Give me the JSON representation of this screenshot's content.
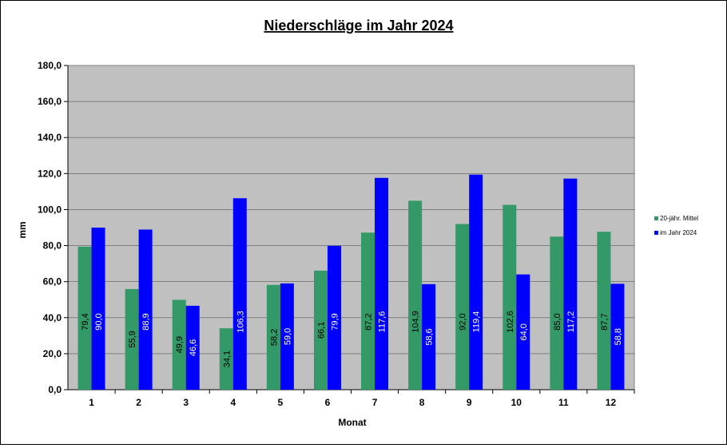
{
  "chart_data": {
    "type": "bar",
    "title": "Niederschläge im Jahr  2024",
    "xlabel": "Monat",
    "ylabel": "mm",
    "ylim": [
      0,
      180
    ],
    "yticks": [
      "0,0",
      "20,0",
      "40,0",
      "60,0",
      "80,0",
      "100,0",
      "120,0",
      "140,0",
      "160,0",
      "180,0"
    ],
    "categories": [
      "1",
      "2",
      "3",
      "4",
      "5",
      "6",
      "7",
      "8",
      "9",
      "10",
      "11",
      "12"
    ],
    "grid": true,
    "legend_position": "right",
    "plot_background": "#c0c0c0",
    "series": [
      {
        "name": "20-jähr. Mittel",
        "color": "#339966",
        "values": [
          79.4,
          55.9,
          49.9,
          34.1,
          58.2,
          66.1,
          87.2,
          104.9,
          92.0,
          102.6,
          85.0,
          87.7
        ],
        "labels": [
          "79,4",
          "55,9",
          "49,9",
          "34,1",
          "58,2",
          "66,1",
          "87,2",
          "104,9",
          "92,0",
          "102,6",
          "85,0",
          "87,7"
        ],
        "label_color": "#000000"
      },
      {
        "name": "im Jahr 2024",
        "color": "#0000ff",
        "values": [
          90.0,
          88.9,
          46.6,
          106.3,
          59.0,
          79.9,
          117.6,
          58.6,
          119.4,
          64.0,
          117.2,
          58.8
        ],
        "labels": [
          "90,0",
          "88,9",
          "46,6",
          "106,3",
          "59,0",
          "79,9",
          "117,6",
          "58,6",
          "119,4",
          "64,0",
          "117,2",
          "58,8"
        ],
        "label_color": "#ffffff"
      }
    ]
  }
}
